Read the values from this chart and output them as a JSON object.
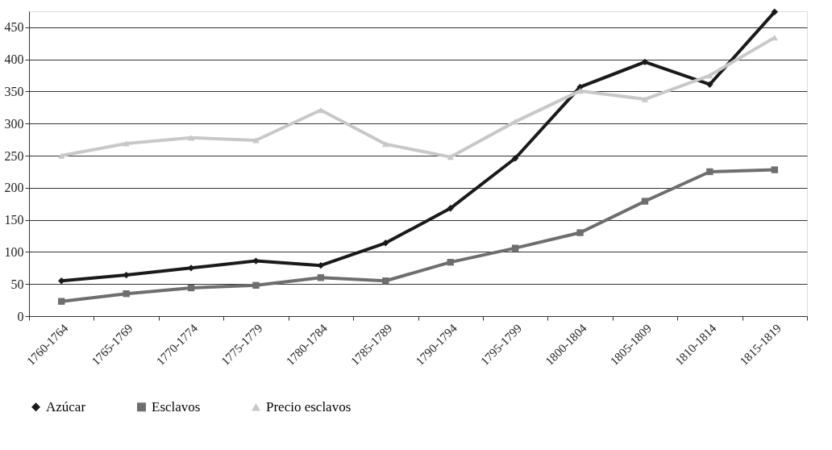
{
  "chart_data": {
    "type": "line",
    "categories": [
      "1760-1764",
      "1765-1769",
      "1770-1774",
      "1775-1779",
      "1780-1784",
      "1785-1789",
      "1790-1794",
      "1795-1799",
      "1800-1804",
      "1805-1809",
      "1810-1814",
      "1815-1819"
    ],
    "series": [
      {
        "name": "Azúcar",
        "color": "#1a1a1a",
        "marker": "diamond",
        "values": [
          55,
          64,
          75,
          86,
          79,
          114,
          168,
          246,
          357,
          396,
          361,
          474
        ]
      },
      {
        "name": "Esclavos",
        "color": "#6e6e6e",
        "marker": "square",
        "values": [
          23,
          35,
          44,
          48,
          60,
          55,
          84,
          106,
          130,
          179,
          225,
          228
        ]
      },
      {
        "name": "Precio esclavos",
        "color": "#c8c8c8",
        "marker": "triangle",
        "values": [
          250,
          269,
          278,
          274,
          321,
          268,
          248,
          303,
          351,
          338,
          375,
          434
        ]
      }
    ],
    "ylim": [
      0,
      475
    ],
    "yticks": [
      0,
      50,
      100,
      150,
      200,
      250,
      300,
      350,
      400,
      450
    ],
    "grid": "y",
    "legend": "bottom",
    "line_style": "solid"
  }
}
